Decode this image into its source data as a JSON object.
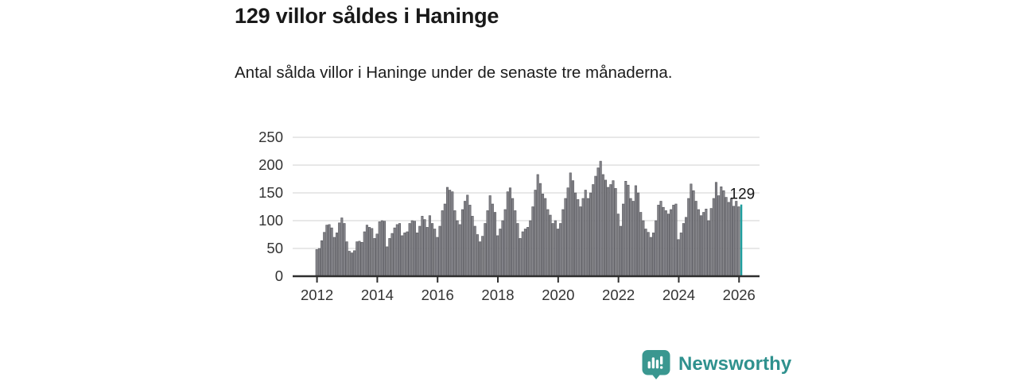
{
  "header": {
    "title": "129 villor såldes i Haninge",
    "subtitle": "Antal sålda villor i Haninge under de senaste tre månaderna."
  },
  "chart_data": {
    "type": "bar",
    "title": "129 villor såldes i Haninge",
    "x_start": "2012-01",
    "x_end": "2026-02",
    "frequency": "monthly",
    "ylim": [
      0,
      250
    ],
    "grid": "horizontal",
    "y_ticks": [
      0,
      50,
      100,
      150,
      200,
      250
    ],
    "x_tick_labels": [
      "2012",
      "2014",
      "2016",
      "2018",
      "2020",
      "2022",
      "2024",
      "2026"
    ],
    "x_tick_start_year": 2012,
    "values": [
      48,
      50,
      64,
      79,
      92,
      93,
      87,
      70,
      78,
      96,
      105,
      95,
      62,
      45,
      42,
      46,
      62,
      63,
      61,
      80,
      92,
      88,
      86,
      68,
      76,
      98,
      100,
      99,
      53,
      68,
      77,
      87,
      93,
      95,
      73,
      78,
      80,
      95,
      100,
      99,
      78,
      90,
      108,
      102,
      88,
      109,
      95,
      85,
      70,
      90,
      118,
      130,
      160,
      155,
      152,
      118,
      100,
      93,
      120,
      135,
      146,
      128,
      108,
      90,
      75,
      62,
      72,
      95,
      118,
      145,
      130,
      115,
      73,
      85,
      100,
      120,
      152,
      159,
      140,
      118,
      95,
      68,
      80,
      85,
      88,
      100,
      125,
      155,
      183,
      167,
      148,
      140,
      120,
      110,
      95,
      100,
      85,
      95,
      120,
      140,
      159,
      186,
      172,
      150,
      138,
      125,
      140,
      155,
      140,
      150,
      165,
      180,
      195,
      207,
      183,
      173,
      160,
      165,
      172,
      158,
      112,
      90,
      130,
      171,
      164,
      140,
      135,
      163,
      150,
      115,
      100,
      85,
      79,
      70,
      78,
      100,
      128,
      135,
      124,
      118,
      112,
      120,
      128,
      130,
      66,
      78,
      95,
      106,
      140,
      166,
      154,
      135,
      120,
      109,
      115,
      121,
      100,
      122,
      140,
      169,
      145,
      161,
      154,
      142,
      133,
      140,
      126,
      135,
      125,
      129
    ],
    "highlight": {
      "index": 169,
      "value": 129,
      "label": "129"
    },
    "colors": {
      "bar": "#85858a",
      "bar_edge": "#55555b",
      "highlight": "#1e9e9e",
      "grid": "#d9d9d9",
      "axis": "#2e2e2e",
      "tick_text": "#333333",
      "annotation_text": "#141414"
    }
  },
  "footer": {
    "brand": "Newsworthy",
    "logo_color": "#3a9790"
  }
}
